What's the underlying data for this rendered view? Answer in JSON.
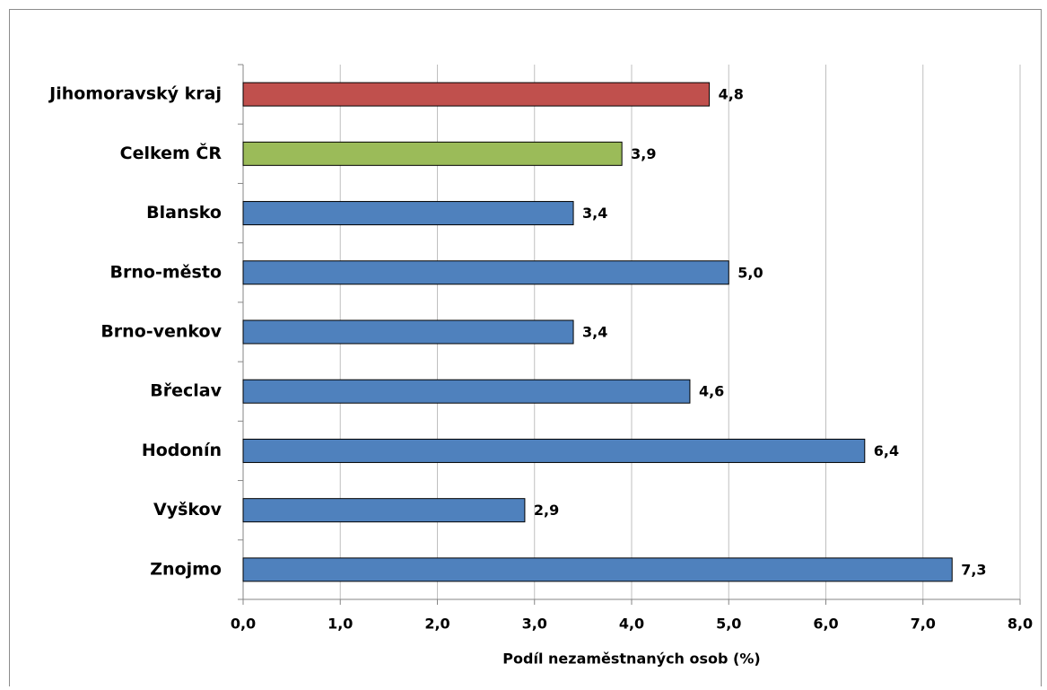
{
  "chart_data": {
    "type": "bar",
    "orientation": "horizontal",
    "x_label": "Podíl nezaměstnaných osob (%)",
    "categories": [
      "Jihomoravský kraj",
      "Celkem ČR",
      "Blansko",
      "Brno-město",
      "Brno-venkov",
      "Břeclav",
      "Hodonín",
      "Vyškov",
      "Znojmo"
    ],
    "values": [
      4.8,
      3.9,
      3.4,
      5.0,
      3.4,
      4.6,
      6.4,
      2.9,
      7.3
    ],
    "value_labels": [
      "4,8",
      "3,9",
      "3,4",
      "5,0",
      "3,4",
      "4,6",
      "6,4",
      "2,9",
      "7,3"
    ],
    "colors": [
      "#c0504d",
      "#9bbb59",
      "#4f81bd",
      "#4f81bd",
      "#4f81bd",
      "#4f81bd",
      "#4f81bd",
      "#4f81bd",
      "#4f81bd"
    ],
    "xlim": [
      0,
      8
    ],
    "xticks": [
      {
        "value": 0,
        "label": "0,0"
      },
      {
        "value": 1,
        "label": "1,0"
      },
      {
        "value": 2,
        "label": "2,0"
      },
      {
        "value": 3,
        "label": "3,0"
      },
      {
        "value": 4,
        "label": "4,0"
      },
      {
        "value": 5,
        "label": "5,0"
      },
      {
        "value": 6,
        "label": "6,0"
      },
      {
        "value": 7,
        "label": "7,0"
      },
      {
        "value": 8,
        "label": "8,0"
      }
    ],
    "grid": true
  }
}
